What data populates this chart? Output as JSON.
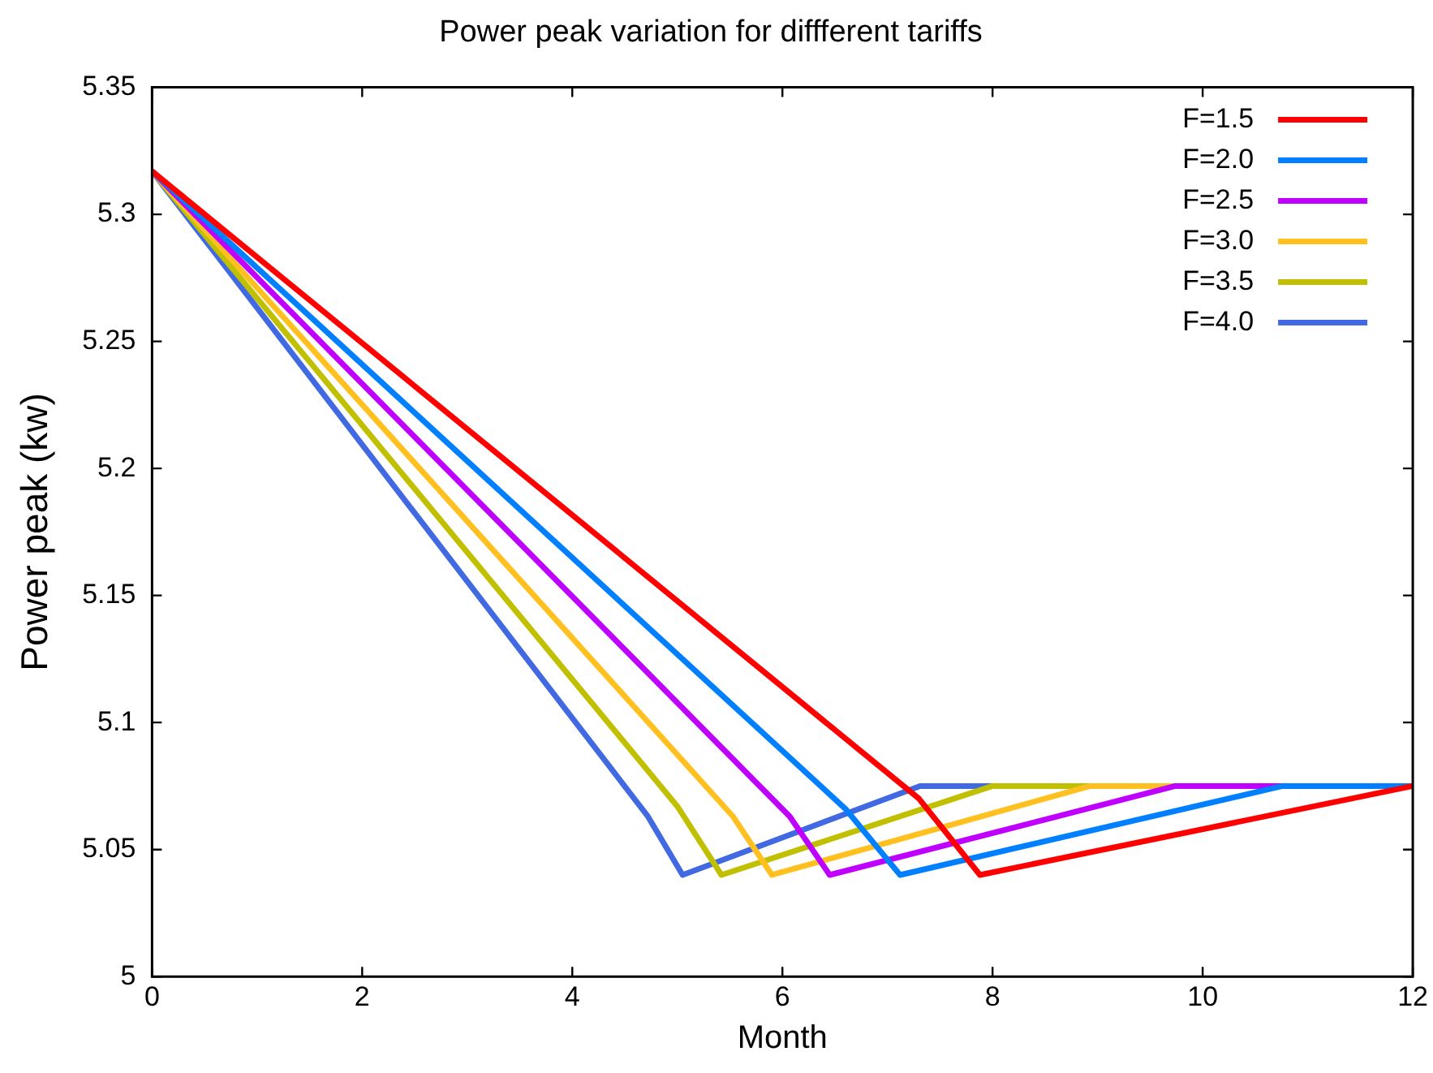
{
  "chart_data": {
    "type": "line",
    "title": "Power peak variation for diffferent tariffs",
    "xlabel": "Month",
    "ylabel": "Power peak (kw)",
    "xlim": [
      0,
      12
    ],
    "xticks": [
      0,
      2,
      4,
      6,
      8,
      10,
      12
    ],
    "ylim": [
      5,
      5.35
    ],
    "yticks": [
      5,
      5.05,
      5.1,
      5.15,
      5.2,
      5.25,
      5.3,
      5.35
    ],
    "grid": false,
    "legend": "top right",
    "marker": "none",
    "line_style": "solid",
    "series": [
      {
        "name": "F=1.5",
        "color": "#ff0000",
        "x": [
          0,
          7.3,
          7.88,
          12
        ],
        "values": [
          5.317,
          5.07,
          5.04,
          5.075
        ]
      },
      {
        "name": "F=2.0",
        "color": "#0080ff",
        "x": [
          0,
          6.6,
          7.12,
          10.76,
          12
        ],
        "values": [
          5.317,
          5.066,
          5.04,
          5.075,
          5.075
        ]
      },
      {
        "name": "F=2.5",
        "color": "#bf00ff",
        "x": [
          0,
          6.07,
          6.45,
          9.74,
          12
        ],
        "values": [
          5.317,
          5.063,
          5.04,
          5.075,
          5.075
        ]
      },
      {
        "name": "F=3.0",
        "color": "#ffc020",
        "x": [
          0,
          5.53,
          5.9,
          8.93,
          12
        ],
        "values": [
          5.317,
          5.063,
          5.04,
          5.075,
          5.075
        ]
      },
      {
        "name": "F=3.5",
        "color": "#c0c000",
        "x": [
          0,
          5.0,
          5.42,
          8.0,
          12
        ],
        "values": [
          5.317,
          5.067,
          5.04,
          5.075,
          5.075
        ]
      },
      {
        "name": "F=4.0",
        "color": "#4169e1",
        "x": [
          0,
          4.72,
          5.05,
          7.31,
          12
        ],
        "values": [
          5.317,
          5.063,
          5.04,
          5.075,
          5.075
        ]
      }
    ]
  }
}
